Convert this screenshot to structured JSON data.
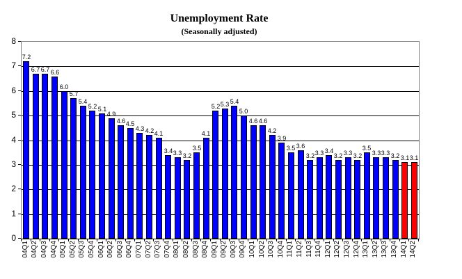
{
  "chart_data": {
    "type": "bar",
    "title": "Unemployment Rate",
    "subtitle": "(Seasonally adjusted)",
    "categories": [
      "04Q1",
      "04Q2",
      "04Q3",
      "04Q4",
      "05Q1",
      "05Q2",
      "05Q3",
      "05Q4",
      "06Q1",
      "06Q2",
      "06Q3",
      "06Q4",
      "07Q1",
      "07Q2",
      "07Q3",
      "07Q4",
      "08Q1",
      "08Q2",
      "08Q3",
      "08Q4",
      "09Q1",
      "09Q2",
      "09Q3",
      "09Q4",
      "10Q1",
      "10Q2",
      "10Q3",
      "10Q4",
      "11Q1",
      "11Q2",
      "11Q3",
      "11Q4",
      "12Q1",
      "12Q2",
      "12Q3",
      "12Q4",
      "13Q1",
      "13Q2",
      "13Q3",
      "13Q4",
      "14Q1",
      "14Q2"
    ],
    "values": [
      7.2,
      6.7,
      6.7,
      6.6,
      6.0,
      5.7,
      5.4,
      5.2,
      5.1,
      4.9,
      4.6,
      4.5,
      4.3,
      4.2,
      4.1,
      3.4,
      3.3,
      3.2,
      3.5,
      4.1,
      5.2,
      5.3,
      5.4,
      5.0,
      4.6,
      4.6,
      4.2,
      3.9,
      3.5,
      3.6,
      3.2,
      3.3,
      3.4,
      3.2,
      3.3,
      3.2,
      3.5,
      3.3,
      3.3,
      3.2,
      3.1,
      3.1
    ],
    "xlabel": "",
    "ylabel": "",
    "ylim": [
      0,
      8
    ],
    "yticks": [
      0,
      1,
      2,
      3,
      4,
      5,
      6,
      7,
      8
    ],
    "grid": "horizontal",
    "legend": "none",
    "show_value_labels": true,
    "value_label_decimals": 1,
    "bar_color": "#0000FF",
    "highlight_color": "#FF0000",
    "highlight_indices": [
      40,
      41
    ],
    "bar_border_color": "#000000",
    "plot_border_color": "#808080",
    "gridline_color": "#000000"
  }
}
